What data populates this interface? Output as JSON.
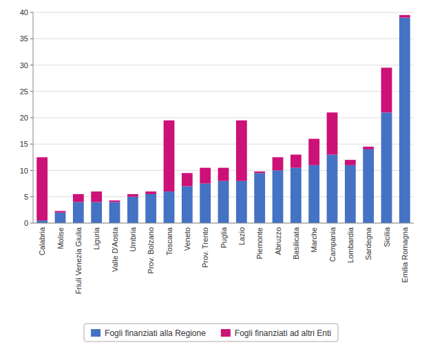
{
  "chart_data": {
    "type": "bar",
    "stacked": true,
    "categories": [
      "Calabria",
      "Molise",
      "Friuli Venezia Giulia",
      "Liguria",
      "Valle D'Aosta",
      "Umbria",
      "Prov. Bolzano",
      "Toscana",
      "Veneto",
      "Prov. Trento",
      "Puglia",
      "Lazio",
      "Piemonte",
      "Abruzzo",
      "Basilicata",
      "Marche",
      "Campania",
      "Lombardia",
      "Sardegna",
      "Sicilia",
      "Emilia Romagna"
    ],
    "series": [
      {
        "name": "Fogli finanziati alla Regione",
        "color": "#4472C4",
        "values": [
          0.5,
          2.0,
          4.0,
          4.0,
          4.0,
          5.0,
          5.5,
          6.0,
          7.0,
          7.5,
          8.0,
          8.0,
          9.5,
          10.0,
          10.5,
          11.0,
          13.0,
          11.0,
          14.0,
          21.0,
          39.0
        ]
      },
      {
        "name": "Fogli finanziati ad altri Enti",
        "color": "#CC1177",
        "values": [
          12.0,
          0.3,
          1.5,
          2.0,
          0.3,
          0.5,
          0.5,
          13.5,
          2.5,
          3.0,
          2.5,
          11.5,
          0.3,
          2.5,
          2.5,
          5.0,
          8.0,
          1.0,
          0.5,
          8.5,
          0.5
        ]
      }
    ],
    "ylim": [
      0,
      40
    ],
    "yticks": [
      0,
      5,
      10,
      15,
      20,
      25,
      30,
      35,
      40
    ],
    "grid": true,
    "legend": "bottom"
  }
}
